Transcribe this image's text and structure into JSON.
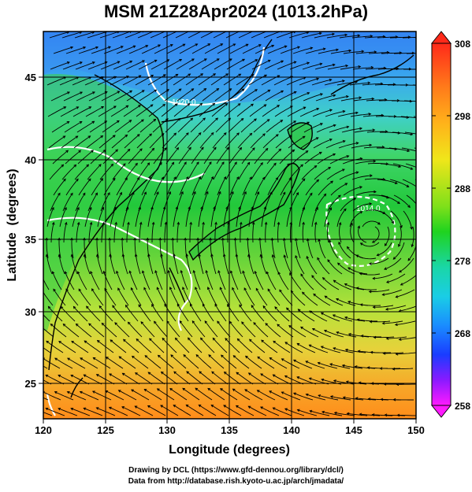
{
  "title": "MSM 21Z28Apr2024 (1013.2hPa)",
  "map": {
    "xlabel": "Longitude (degrees)",
    "ylabel": "Latitude  (degrees)",
    "lon_ticks": [
      "120",
      "125",
      "130",
      "135",
      "140",
      "145",
      "150"
    ],
    "lat_ticks": [
      "25",
      "30",
      "35",
      "40",
      "45"
    ],
    "lon_range": [
      120,
      150
    ],
    "lat_range": [
      22.5,
      47.5
    ],
    "isobar_labels": [
      "1020.0",
      "1014.0"
    ],
    "field": "temperature (K) with wind streamlines",
    "colors": {
      "cold": "#2f7dff",
      "cool": "#36c9e6",
      "mid": "#2fcf3a",
      "warm": "#c8e83a",
      "hot": "#ff9a1f",
      "coast": "#000000",
      "isobar": "#ffffff"
    }
  },
  "colorbar": {
    "labels": [
      "308",
      "298",
      "288",
      "278",
      "268",
      "258"
    ],
    "range": [
      258,
      308
    ]
  },
  "credits": {
    "line1": "Drawing by DCL (https://www.gfd-dennou.org/library/dcl/)",
    "line2": "Data from http://database.rish.kyoto-u.ac.jp/arch/jmadata/"
  }
}
